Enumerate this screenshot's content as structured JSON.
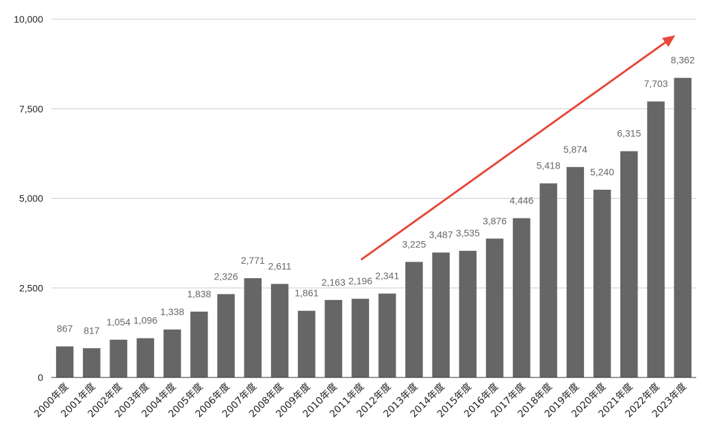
{
  "chart_data": {
    "type": "bar",
    "categories": [
      "2000年度",
      "2001年度",
      "2002年度",
      "2003年度",
      "2004年度",
      "2005年度",
      "2006年度",
      "2007年度",
      "2008年度",
      "2009年度",
      "2010年度",
      "2011年度",
      "2012年度",
      "2013年度",
      "2014年度",
      "2015年度",
      "2016年度",
      "2017年度",
      "2018年度",
      "2019年度",
      "2020年度",
      "2021年度",
      "2022年度",
      "2023年度"
    ],
    "values": [
      867,
      817,
      1054,
      1096,
      1338,
      1838,
      2326,
      2771,
      2611,
      1861,
      2163,
      2196,
      2341,
      3225,
      3487,
      3535,
      3876,
      4446,
      5418,
      5874,
      5240,
      6315,
      7703,
      8362
    ],
    "value_labels": [
      "867",
      "817",
      "1,054",
      "1,096",
      "1,338",
      "1,838",
      "2,326",
      "2,771",
      "2,611",
      "1,861",
      "2,163",
      "2,196",
      "2,341",
      "3,225",
      "3,487",
      "3,535",
      "3,876",
      "4,446",
      "5,418",
      "5,874",
      "5,240",
      "6,315",
      "7,703",
      "8,362"
    ],
    "yticks": [
      0,
      2500,
      5000,
      7500,
      10000
    ],
    "ytick_labels": [
      "0",
      "2,500",
      "5,000",
      "7,500",
      "10,000"
    ],
    "ylim": [
      0,
      10000
    ],
    "grid": true,
    "legend": "none",
    "bar_color": "#666666",
    "annotation": {
      "type": "arrow",
      "from": [
        "2011年度",
        3300
      ],
      "to": [
        "2023年度",
        9550
      ],
      "color": "#e8473b"
    }
  }
}
